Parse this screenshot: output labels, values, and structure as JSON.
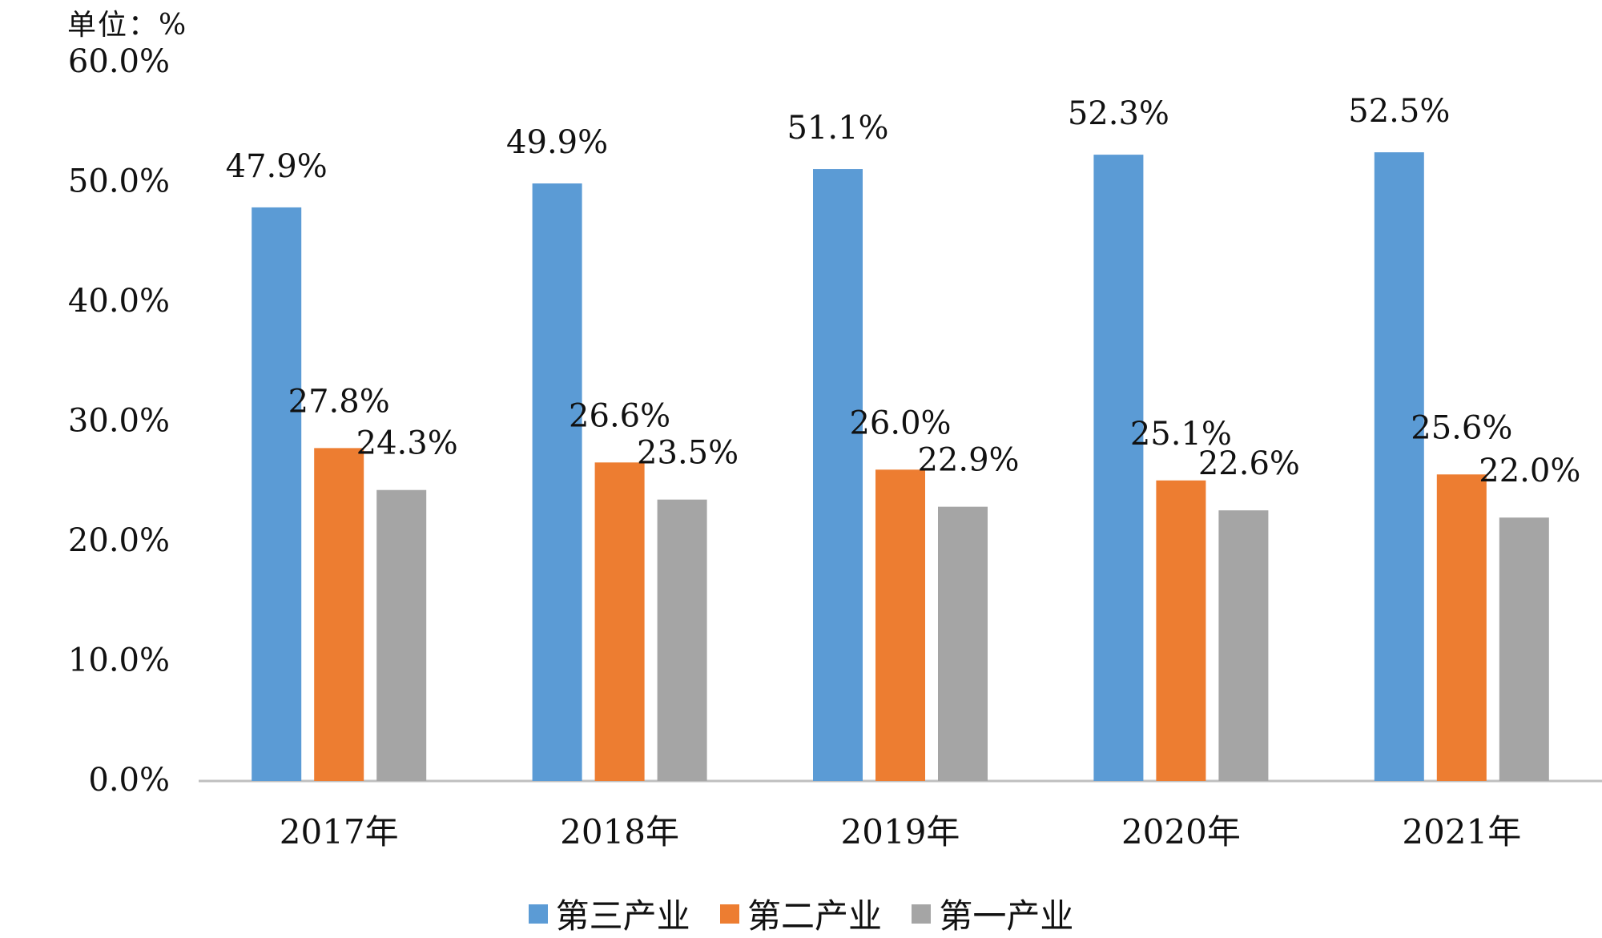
{
  "unit_label": "单位：%",
  "chart_data": {
    "type": "bar",
    "title": "",
    "xlabel": "",
    "ylabel": "单位：%",
    "ylim": [
      0,
      60
    ],
    "ytick_step": 10,
    "ytick_labels": [
      "0.0%",
      "10.0%",
      "20.0%",
      "30.0%",
      "40.0%",
      "50.0%",
      "60.0%"
    ],
    "categories": [
      "2017年",
      "2018年",
      "2019年",
      "2020年",
      "2021年"
    ],
    "series": [
      {
        "name": "第三产业",
        "color": "#5B9BD5",
        "values": [
          47.9,
          49.9,
          51.1,
          52.3,
          52.5
        ],
        "labels": [
          "47.9%",
          "49.9%",
          "51.1%",
          "52.3%",
          "52.5%"
        ]
      },
      {
        "name": "第二产业",
        "color": "#ED7D31",
        "values": [
          27.8,
          26.6,
          26.0,
          25.1,
          25.6
        ],
        "labels": [
          "27.8%",
          "26.6%",
          "26.0%",
          "25.1%",
          "25.6%"
        ]
      },
      {
        "name": "第一产业",
        "color": "#A5A5A5",
        "values": [
          24.3,
          23.5,
          22.9,
          22.6,
          22.0
        ],
        "labels": [
          "24.3%",
          "23.5%",
          "22.9%",
          "22.6%",
          "22.0%"
        ]
      }
    ],
    "legend_position": "bottom",
    "grid": false
  }
}
